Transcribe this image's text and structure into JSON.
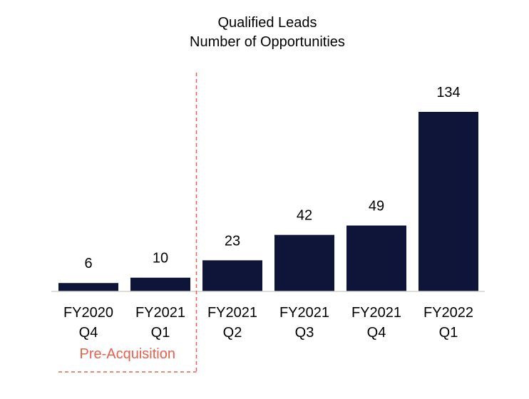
{
  "chart_data": {
    "type": "bar",
    "title": "Qualified Leads",
    "subtitle": "Number of Opportunities",
    "categories": [
      [
        "FY2020",
        "Q4"
      ],
      [
        "FY2021",
        "Q1"
      ],
      [
        "FY2021",
        "Q2"
      ],
      [
        "FY2021",
        "Q3"
      ],
      [
        "FY2021",
        "Q4"
      ],
      [
        "FY2022",
        "Q1"
      ]
    ],
    "values": [
      6,
      10,
      23,
      42,
      49,
      134
    ],
    "xlabel": "",
    "ylabel": "",
    "ylim": [
      0,
      134
    ],
    "grid": false,
    "legend": "none",
    "bar_color": "#0f1538",
    "annotation": {
      "text": "Pre-Acquisition",
      "color": "#e8604c",
      "spans_categories": [
        0,
        1
      ]
    }
  }
}
